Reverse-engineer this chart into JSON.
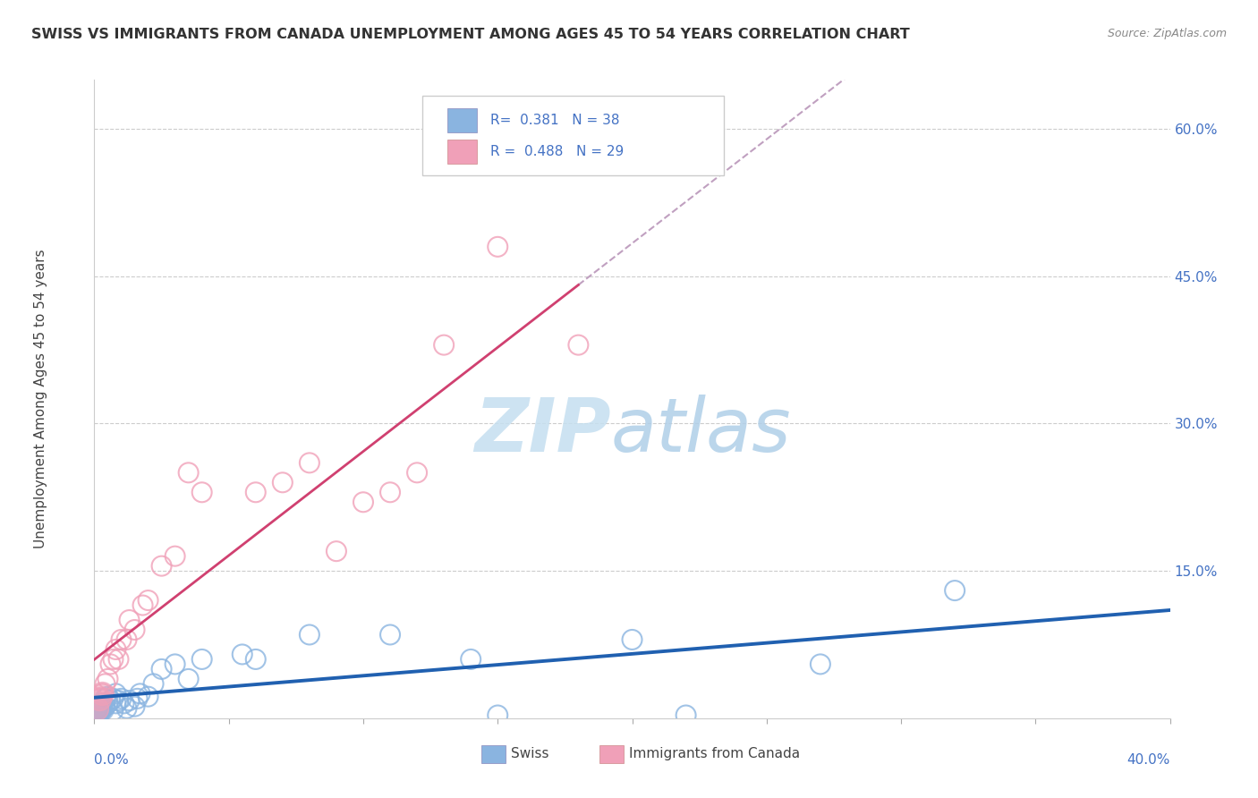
{
  "title": "SWISS VS IMMIGRANTS FROM CANADA UNEMPLOYMENT AMONG AGES 45 TO 54 YEARS CORRELATION CHART",
  "source": "Source: ZipAtlas.com",
  "ylabel": "Unemployment Among Ages 45 to 54 years",
  "blue_color": "#8ab4e0",
  "pink_color": "#f0a0b8",
  "blue_line_color": "#2060b0",
  "pink_line_color": "#d04070",
  "dashed_line_color": "#c0a0c0",
  "xlim": [
    0.0,
    0.4
  ],
  "ylim": [
    0.0,
    0.65
  ],
  "background_color": "#ffffff",
  "grid_color": "#cccccc",
  "swiss_x": [
    0.001,
    0.002,
    0.002,
    0.003,
    0.003,
    0.004,
    0.004,
    0.005,
    0.005,
    0.006,
    0.007,
    0.007,
    0.008,
    0.008,
    0.009,
    0.01,
    0.011,
    0.012,
    0.013,
    0.015,
    0.016,
    0.017,
    0.02,
    0.022,
    0.025,
    0.03,
    0.035,
    0.04,
    0.055,
    0.06,
    0.08,
    0.11,
    0.14,
    0.15,
    0.2,
    0.22,
    0.27,
    0.32
  ],
  "swiss_y": [
    0.005,
    0.008,
    0.012,
    0.01,
    0.015,
    0.012,
    0.02,
    0.015,
    0.022,
    0.018,
    0.02,
    0.008,
    0.015,
    0.025,
    0.018,
    0.02,
    0.015,
    0.01,
    0.018,
    0.012,
    0.02,
    0.025,
    0.022,
    0.035,
    0.05,
    0.055,
    0.04,
    0.06,
    0.065,
    0.06,
    0.085,
    0.085,
    0.06,
    0.003,
    0.08,
    0.003,
    0.055,
    0.13
  ],
  "canada_x": [
    0.001,
    0.002,
    0.003,
    0.004,
    0.005,
    0.006,
    0.007,
    0.008,
    0.009,
    0.01,
    0.012,
    0.013,
    0.015,
    0.018,
    0.02,
    0.025,
    0.03,
    0.035,
    0.04,
    0.06,
    0.07,
    0.08,
    0.09,
    0.1,
    0.11,
    0.12,
    0.13,
    0.15,
    0.18
  ],
  "canada_y": [
    0.01,
    0.02,
    0.025,
    0.035,
    0.04,
    0.055,
    0.06,
    0.07,
    0.06,
    0.08,
    0.08,
    0.1,
    0.09,
    0.115,
    0.12,
    0.155,
    0.165,
    0.25,
    0.23,
    0.23,
    0.24,
    0.26,
    0.17,
    0.22,
    0.23,
    0.25,
    0.38,
    0.48,
    0.38
  ],
  "right_yticklabels": [
    "",
    "15.0%",
    "30.0%",
    "45.0%",
    "60.0%"
  ],
  "right_ytick_vals": [
    0.0,
    0.15,
    0.3,
    0.45,
    0.6
  ]
}
